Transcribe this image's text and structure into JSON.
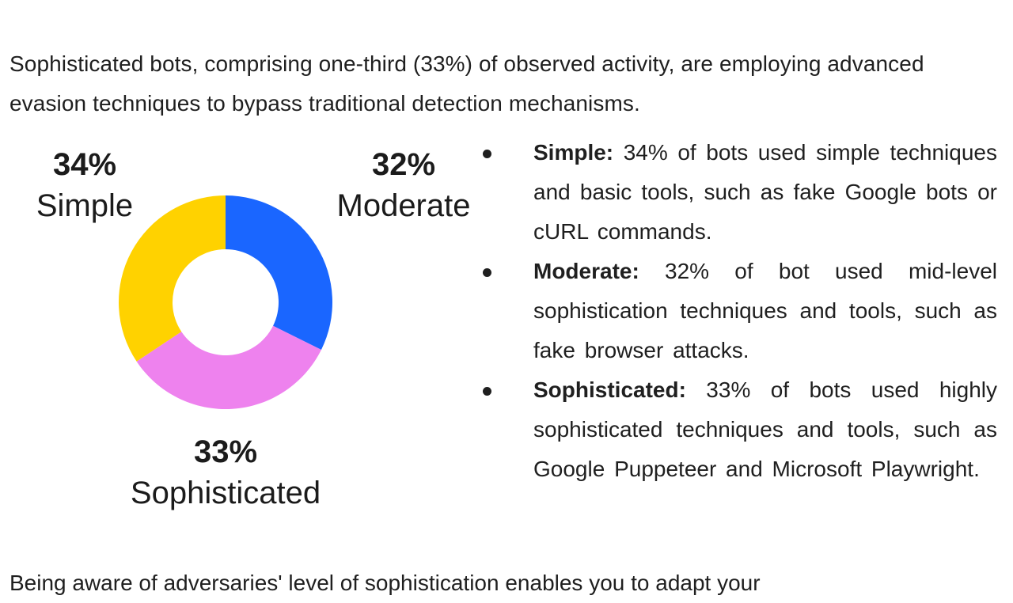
{
  "intro": "Sophisticated bots, comprising one-third (33%) of observed activity, are employing advanced evasion techniques to bypass traditional detection mechanisms.",
  "chart_data": {
    "type": "pie",
    "title": "",
    "categories": [
      "Moderate",
      "Sophisticated",
      "Simple"
    ],
    "values": [
      32,
      33,
      34
    ],
    "colors": [
      "#1a66ff",
      "#ee82ee",
      "#ffd200"
    ],
    "labels": [
      {
        "pct": "34%",
        "name": "Simple"
      },
      {
        "pct": "32%",
        "name": "Moderate"
      },
      {
        "pct": "33%",
        "name": "Sophisticated"
      }
    ]
  },
  "bullets": [
    {
      "term": "Simple:",
      "text": " 34% of bots used simple techniques and basic tools, such as fake Google bots or cURL commands."
    },
    {
      "term": "Moderate:",
      "text": " 32% of bot used mid-level sophistication techniques and tools, such as fake browser attacks."
    },
    {
      "term": "Sophisticated:",
      "text": " 33% of bots used highly sophisticated techniques and tools, such as Google Puppeteer and Microsoft Playwright."
    }
  ],
  "outro": "Being aware of adversaries' level of sophistication enables you to adapt your"
}
